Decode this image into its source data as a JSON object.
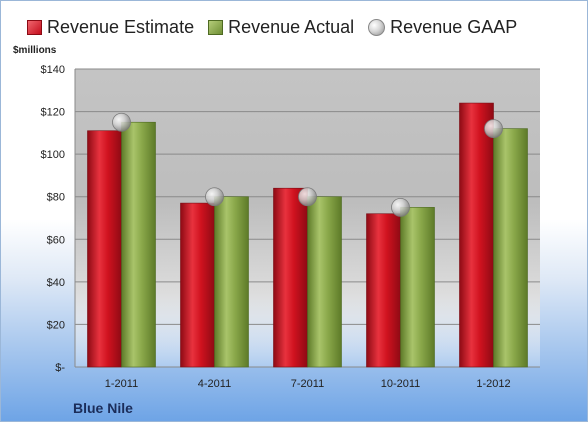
{
  "legend": {
    "estimate": "Revenue Estimate",
    "actual": "Revenue Actual",
    "gaap": "Revenue GAAP"
  },
  "unit_label": "$millions",
  "company": "Blue Nile",
  "colors": {
    "estimate": "#d0121f",
    "actual": "#8aa84a",
    "gaap": "#c8c8c8"
  },
  "chart_data": {
    "type": "bar",
    "categories": [
      "1-2011",
      "4-2011",
      "7-2011",
      "10-2011",
      "1-2012"
    ],
    "series": [
      {
        "name": "Revenue Estimate",
        "values": [
          111,
          77,
          84,
          72,
          124
        ]
      },
      {
        "name": "Revenue Actual",
        "values": [
          115,
          80,
          80,
          75,
          112
        ]
      },
      {
        "name": "Revenue GAAP",
        "values": [
          115,
          80,
          80,
          75,
          112
        ],
        "style": "marker"
      }
    ],
    "ylabel": "$millions",
    "ylim": [
      0,
      140
    ],
    "yticks": [
      "$-",
      "$20",
      "$40",
      "$60",
      "$80",
      "$100",
      "$120",
      "$140"
    ],
    "grid": true,
    "legend_position": "top"
  }
}
